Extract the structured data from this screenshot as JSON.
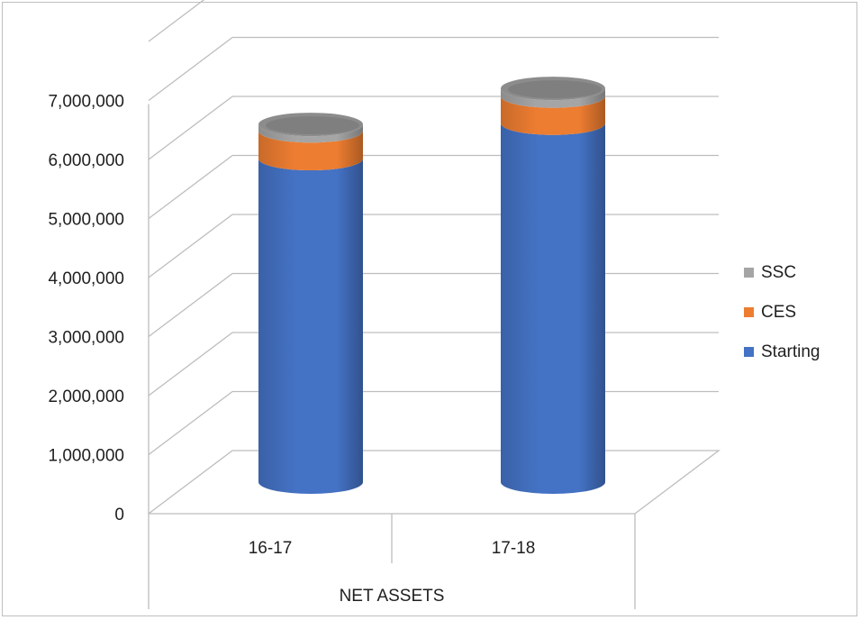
{
  "chart_data": {
    "type": "bar",
    "style": "3d-cylinder-stacked",
    "categories": [
      "16-17",
      "17-18"
    ],
    "group_label": "NET ASSETS",
    "series": [
      {
        "name": "Starting",
        "color": "#4472c4",
        "values": [
          5480000,
          6080000
        ]
      },
      {
        "name": "CES",
        "color": "#ed7d31",
        "values": [
          470000,
          460000
        ]
      },
      {
        "name": "SSC",
        "color": "#a5a5a5",
        "values": [
          110000,
          130000
        ]
      }
    ],
    "ylim": [
      0,
      7000000
    ],
    "yticks": [
      0,
      1000000,
      2000000,
      3000000,
      4000000,
      5000000,
      6000000,
      7000000
    ],
    "ytick_labels": [
      "0",
      "1,000,000",
      "2,000,000",
      "3,000,000",
      "4,000,000",
      "5,000,000",
      "6,000,000",
      "7,000,000"
    ],
    "legend_position": "right",
    "legend_order": [
      "SSC",
      "CES",
      "Starting"
    ],
    "grid": true
  }
}
